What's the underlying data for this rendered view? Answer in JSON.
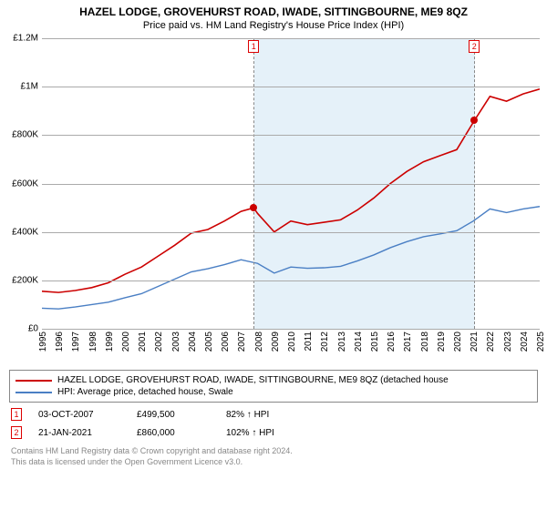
{
  "title": "HAZEL LODGE, GROVEHURST ROAD, IWADE, SITTINGBOURNE, ME9 8QZ",
  "subtitle": "Price paid vs. HM Land Registry's House Price Index (HPI)",
  "chart": {
    "type": "line",
    "background_color": "#ffffff",
    "grid_color": "#aaaaaa",
    "shaded_region": {
      "start_year": 2007.8,
      "end_year": 2021.1,
      "color": "#d0e6f4"
    },
    "x": {
      "min": 1995,
      "max": 2025,
      "ticks": [
        "1995",
        "1996",
        "1997",
        "1998",
        "1999",
        "2000",
        "2001",
        "2002",
        "2003",
        "2004",
        "2005",
        "2006",
        "2007",
        "2008",
        "2009",
        "2010",
        "2011",
        "2012",
        "2013",
        "2014",
        "2015",
        "2016",
        "2017",
        "2018",
        "2019",
        "2020",
        "2021",
        "2022",
        "2023",
        "2024",
        "2025"
      ]
    },
    "y": {
      "min": 0,
      "max": 1200000,
      "ticks": [
        0,
        200000,
        400000,
        600000,
        800000,
        1000000,
        1200000
      ],
      "labels": [
        "£0",
        "£200K",
        "£400K",
        "£600K",
        "£800K",
        "£1M",
        "£1.2M"
      ]
    },
    "series": [
      {
        "name": "HAZEL LODGE, GROVEHURST ROAD, IWADE, SITTINGBOURNE, ME9 8QZ (detached house",
        "color": "#cc0000",
        "line_width": 1.6,
        "points": [
          [
            1995,
            155000
          ],
          [
            1996,
            150000
          ],
          [
            1997,
            158000
          ],
          [
            1998,
            170000
          ],
          [
            1999,
            190000
          ],
          [
            2000,
            225000
          ],
          [
            2001,
            255000
          ],
          [
            2002,
            300000
          ],
          [
            2003,
            345000
          ],
          [
            2004,
            395000
          ],
          [
            2005,
            410000
          ],
          [
            2006,
            445000
          ],
          [
            2007,
            485000
          ],
          [
            2007.76,
            499500
          ],
          [
            2008,
            476000
          ],
          [
            2009,
            400000
          ],
          [
            2010,
            445000
          ],
          [
            2011,
            430000
          ],
          [
            2012,
            440000
          ],
          [
            2013,
            450000
          ],
          [
            2014,
            490000
          ],
          [
            2015,
            540000
          ],
          [
            2016,
            600000
          ],
          [
            2017,
            650000
          ],
          [
            2018,
            690000
          ],
          [
            2019,
            715000
          ],
          [
            2020,
            740000
          ],
          [
            2021.06,
            860000
          ],
          [
            2022,
            960000
          ],
          [
            2023,
            940000
          ],
          [
            2024,
            970000
          ],
          [
            2025,
            990000
          ]
        ]
      },
      {
        "name": "HPI: Average price, detached house, Swale",
        "color": "#4a7fc4",
        "line_width": 1.4,
        "points": [
          [
            1995,
            85000
          ],
          [
            1996,
            82000
          ],
          [
            1997,
            90000
          ],
          [
            1998,
            100000
          ],
          [
            1999,
            110000
          ],
          [
            2000,
            128000
          ],
          [
            2001,
            145000
          ],
          [
            2002,
            175000
          ],
          [
            2003,
            205000
          ],
          [
            2004,
            235000
          ],
          [
            2005,
            248000
          ],
          [
            2006,
            265000
          ],
          [
            2007,
            285000
          ],
          [
            2008,
            270000
          ],
          [
            2009,
            230000
          ],
          [
            2010,
            255000
          ],
          [
            2011,
            250000
          ],
          [
            2012,
            252000
          ],
          [
            2013,
            258000
          ],
          [
            2014,
            280000
          ],
          [
            2015,
            305000
          ],
          [
            2016,
            335000
          ],
          [
            2017,
            360000
          ],
          [
            2018,
            380000
          ],
          [
            2019,
            392000
          ],
          [
            2020,
            405000
          ],
          [
            2021,
            445000
          ],
          [
            2022,
            495000
          ],
          [
            2023,
            480000
          ],
          [
            2024,
            495000
          ],
          [
            2025,
            505000
          ]
        ]
      }
    ],
    "markers": [
      {
        "label": "1",
        "year": 2007.76,
        "dot_y": 499500,
        "dot_color": "#cc0000"
      },
      {
        "label": "2",
        "year": 2021.06,
        "dot_y": 860000,
        "dot_color": "#cc0000"
      }
    ]
  },
  "sales": [
    {
      "marker": "1",
      "date": "03-OCT-2007",
      "price": "£499,500",
      "pct": "82% ↑ HPI"
    },
    {
      "marker": "2",
      "date": "21-JAN-2021",
      "price": "£860,000",
      "pct": "102% ↑ HPI"
    }
  ],
  "footer_line1": "Contains HM Land Registry data © Crown copyright and database right 2024.",
  "footer_line2": "This data is licensed under the Open Government Licence v3.0."
}
